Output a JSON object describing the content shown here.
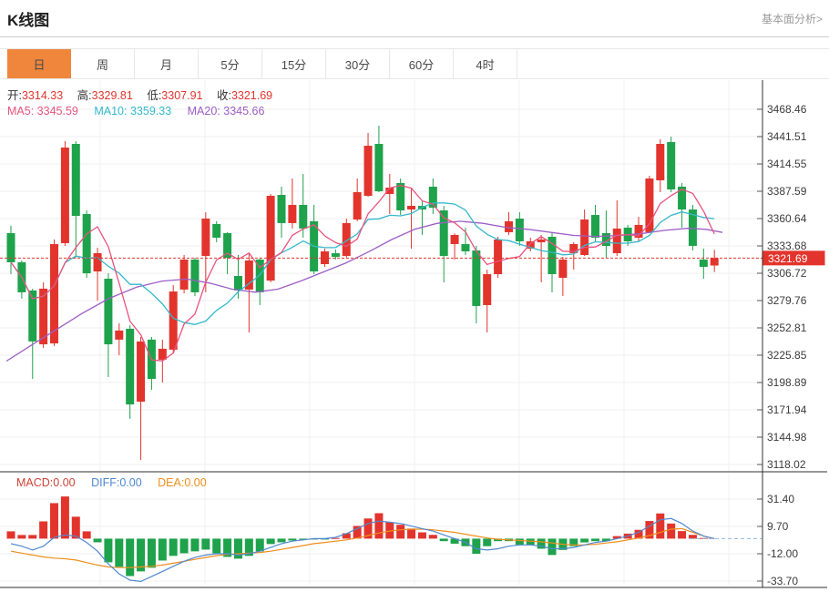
{
  "header": {
    "title": "K线图",
    "link": "基本面分析>"
  },
  "tabs": {
    "items": [
      {
        "label": "日",
        "active": true
      },
      {
        "label": "周",
        "active": false
      },
      {
        "label": "月",
        "active": false
      },
      {
        "label": "5分",
        "active": false
      },
      {
        "label": "15分",
        "active": false
      },
      {
        "label": "30分",
        "active": false
      },
      {
        "label": "60分",
        "active": false
      },
      {
        "label": "4时",
        "active": false
      }
    ]
  },
  "ohlc": {
    "open": {
      "label": "开:",
      "value": "3314.33"
    },
    "high": {
      "label": "高:",
      "value": "3329.81"
    },
    "low": {
      "label": "低:",
      "value": "3307.91"
    },
    "close": {
      "label": "收:",
      "value": "3321.69"
    }
  },
  "ma": {
    "ma5": {
      "label": "MA5:",
      "value": "3345.59"
    },
    "ma10": {
      "label": "MA10:",
      "value": "3359.33"
    },
    "ma20": {
      "label": "MA20:",
      "value": "3345.66"
    }
  },
  "macd_readout": {
    "macd": "MACD:0.00",
    "diff": "DIFF:0.00",
    "dea": "DEA:0.00"
  },
  "price_marker": "3321.69",
  "colors": {
    "up": "#e2342c",
    "down": "#1ea24b",
    "ma5": "#e8537f",
    "ma10": "#35b8cc",
    "ma20": "#9d5ec6",
    "macd_label": "#cf4436",
    "diff": "#5087d0",
    "dea": "#ef8e1c",
    "accent_tab": "#ef863c",
    "axis_text": "#3b3b3b",
    "grid": "#efefef",
    "frame": "#2f2f2f"
  },
  "chart_data": {
    "type": "candlestick",
    "title": "K线图",
    "interval_selected": "日",
    "price_axis_labels": [
      "3468.46",
      "3441.51",
      "3414.55",
      "3387.59",
      "3360.64",
      "3333.68",
      "3306.72",
      "3279.76",
      "3252.81",
      "3225.85",
      "3198.89",
      "3171.94",
      "3144.98",
      "3118.02"
    ],
    "current_price": 3321.69,
    "ohlc_last": {
      "open": 3314.33,
      "high": 3329.81,
      "low": 3307.91,
      "close": 3321.69
    },
    "ma_values": {
      "ma5": 3345.59,
      "ma10": 3359.33,
      "ma20": 3345.66
    },
    "candles": [
      [
        3346.3,
        3353.5,
        3305.8,
        3317.5
      ],
      [
        3317.5,
        3319.3,
        3281.6,
        3287.9
      ],
      [
        3289.7,
        3291.5,
        3202.5,
        3239.4
      ],
      [
        3236.6,
        3297.7,
        3233.0,
        3291.5
      ],
      [
        3237.5,
        3340.0,
        3235.0,
        3335.5
      ],
      [
        3336.4,
        3437.0,
        3333.7,
        3430.7
      ],
      [
        3434.3,
        3437.0,
        3322.0,
        3363.3
      ],
      [
        3365.1,
        3368.7,
        3302.2,
        3306.7
      ],
      [
        3308.5,
        3331.9,
        3279.8,
        3326.5
      ],
      [
        3301.3,
        3306.7,
        3204.3,
        3236.6
      ],
      [
        3241.2,
        3257.3,
        3225.9,
        3250.2
      ],
      [
        3251.9,
        3255.5,
        3163.0,
        3177.3
      ],
      [
        3180.0,
        3243.8,
        3122.5,
        3239.4
      ],
      [
        3241.2,
        3243.8,
        3191.7,
        3202.5
      ],
      [
        3221.4,
        3241.2,
        3198.9,
        3232.2
      ],
      [
        3231.3,
        3295.0,
        3227.7,
        3288.7
      ],
      [
        3290.6,
        3324.7,
        3286.9,
        3320.2
      ],
      [
        3320.2,
        3322.0,
        3284.2,
        3287.9
      ],
      [
        3323.8,
        3366.9,
        3287.9,
        3360.6
      ],
      [
        3355.3,
        3358.0,
        3337.3,
        3341.8
      ],
      [
        3346.3,
        3347.2,
        3305.8,
        3322.0
      ],
      [
        3304.0,
        3324.7,
        3281.6,
        3289.7
      ],
      [
        3290.6,
        3326.5,
        3248.3,
        3319.3
      ],
      [
        3320.2,
        3322.0,
        3275.3,
        3287.9
      ],
      [
        3299.5,
        3384.9,
        3297.7,
        3383.1
      ],
      [
        3384.0,
        3392.1,
        3341.8,
        3356.2
      ],
      [
        3356.2,
        3400.2,
        3350.8,
        3374.1
      ],
      [
        3374.1,
        3404.7,
        3341.8,
        3350.8
      ],
      [
        3358.0,
        3374.1,
        3305.8,
        3308.5
      ],
      [
        3315.7,
        3331.0,
        3313.0,
        3328.3
      ],
      [
        3326.5,
        3330.1,
        3320.2,
        3322.9
      ],
      [
        3323.8,
        3360.6,
        3322.0,
        3356.2
      ],
      [
        3359.7,
        3400.2,
        3358.0,
        3386.7
      ],
      [
        3383.1,
        3445.1,
        3382.2,
        3432.5
      ],
      [
        3434.3,
        3452.3,
        3386.7,
        3387.6
      ],
      [
        3384.9,
        3404.7,
        3365.1,
        3391.2
      ],
      [
        3395.7,
        3400.2,
        3364.2,
        3368.7
      ],
      [
        3369.6,
        3391.2,
        3331.0,
        3373.2
      ],
      [
        3373.2,
        3378.6,
        3344.5,
        3369.6
      ],
      [
        3392.1,
        3400.2,
        3365.1,
        3371.4
      ],
      [
        3368.7,
        3373.2,
        3297.7,
        3323.8
      ],
      [
        3335.5,
        3346.0,
        3320.2,
        3344.5
      ],
      [
        3335.5,
        3351.7,
        3324.7,
        3328.3
      ],
      [
        3329.2,
        3333.7,
        3257.3,
        3274.4
      ],
      [
        3275.3,
        3310.3,
        3248.3,
        3305.8
      ],
      [
        3305.8,
        3342.7,
        3302.2,
        3340.0
      ],
      [
        3347.2,
        3366.9,
        3344.5,
        3358.0
      ],
      [
        3360.6,
        3366.9,
        3333.7,
        3338.2
      ],
      [
        3331.0,
        3341.8,
        3328.3,
        3338.2
      ],
      [
        3337.3,
        3344.5,
        3297.7,
        3340.0
      ],
      [
        3342.7,
        3346.3,
        3287.9,
        3305.8
      ],
      [
        3302.2,
        3322.9,
        3284.2,
        3320.2
      ],
      [
        3326.5,
        3337.3,
        3310.3,
        3335.5
      ],
      [
        3324.7,
        3369.6,
        3323.8,
        3359.7
      ],
      [
        3364.2,
        3374.1,
        3338.2,
        3341.8
      ],
      [
        3346.3,
        3368.7,
        3322.0,
        3333.7
      ],
      [
        3326.5,
        3378.6,
        3323.8,
        3350.8
      ],
      [
        3351.7,
        3354.4,
        3333.7,
        3338.2
      ],
      [
        3341.8,
        3362.4,
        3338.2,
        3354.4
      ],
      [
        3347.2,
        3402.9,
        3346.3,
        3400.2
      ],
      [
        3398.4,
        3438.8,
        3386.7,
        3434.3
      ],
      [
        3436.1,
        3441.5,
        3386.7,
        3389.4
      ],
      [
        3392.1,
        3395.7,
        3351.7,
        3369.6
      ],
      [
        3369.6,
        3374.1,
        3329.2,
        3333.7
      ],
      [
        3320.2,
        3331.0,
        3301.3,
        3313.0
      ],
      [
        3314.33,
        3329.81,
        3307.91,
        3321.69
      ]
    ],
    "ma20_points": [
      [
        7,
        3220
      ],
      [
        35,
        3236
      ],
      [
        60,
        3250
      ],
      [
        90,
        3267
      ],
      [
        120,
        3282
      ],
      [
        150,
        3293
      ],
      [
        178,
        3299
      ],
      [
        205,
        3301
      ],
      [
        230,
        3297
      ],
      [
        255,
        3291
      ],
      [
        280,
        3288
      ],
      [
        305,
        3291
      ],
      [
        330,
        3299
      ],
      [
        355,
        3308
      ],
      [
        380,
        3317
      ],
      [
        405,
        3328
      ],
      [
        430,
        3340
      ],
      [
        455,
        3350
      ],
      [
        480,
        3356
      ],
      [
        505,
        3358
      ],
      [
        530,
        3356
      ],
      [
        555,
        3352
      ],
      [
        580,
        3350
      ],
      [
        605,
        3347
      ],
      [
        630,
        3344
      ],
      [
        655,
        3343
      ],
      [
        680,
        3344
      ],
      [
        705,
        3346
      ],
      [
        730,
        3349
      ],
      [
        755,
        3351
      ],
      [
        775,
        3350
      ],
      [
        793,
        3347
      ]
    ],
    "macd": {
      "axis_labels": [
        "31.40",
        "9.70",
        "-12.00",
        "-33.70"
      ],
      "last_values": {
        "macd": 0.0,
        "diff": 0.0,
        "dea": 0.0
      },
      "bars": [
        5.8,
        2.9,
        2.9,
        13.7,
        28.2,
        33.5,
        17.4,
        5.8,
        -2.9,
        -18.8,
        -22.4,
        -29.7,
        -26.0,
        -23.1,
        -17.4,
        -13.7,
        -11.6,
        -10.1,
        -8.7,
        -11.6,
        -14.5,
        -15.9,
        -13.7,
        -10.1,
        -4.3,
        -2.9,
        -1.5,
        -0.8,
        -0.5,
        -0.5,
        0.5,
        4.3,
        10.1,
        16.0,
        20.2,
        13.0,
        11.0,
        8.0,
        5.0,
        3.0,
        -2.0,
        -4.0,
        -6.0,
        -12.0,
        -6.0,
        -2.0,
        -2.0,
        -5.0,
        -5.0,
        -8.0,
        -13.0,
        -9.0,
        -6.0,
        -3.0,
        -2.0,
        -2.0,
        2.0,
        4.0,
        7.0,
        14.0,
        20.0,
        12.0,
        6.0,
        3.0,
        0.5,
        0.0
      ],
      "diff": [
        -4,
        -6,
        -9,
        -6,
        1,
        3,
        2,
        -3,
        -10,
        -20,
        -28,
        -33,
        -34,
        -30,
        -26,
        -22,
        -18,
        -15,
        -13,
        -12,
        -12,
        -13,
        -12,
        -10,
        -7,
        -4,
        -2,
        -1,
        0,
        0,
        1,
        4,
        8,
        12,
        14,
        13,
        12,
        10,
        8,
        6,
        3,
        0,
        -3,
        -8,
        -9,
        -8,
        -6,
        -5,
        -5,
        -6,
        -8,
        -8,
        -7,
        -5,
        -3,
        -2,
        0,
        2,
        5,
        10,
        15,
        16,
        12,
        6,
        2,
        0
      ],
      "dea": [
        -10,
        -11.5,
        -13,
        -14.5,
        -15.5,
        -16,
        -17,
        -19,
        -21,
        -22.5,
        -23,
        -23,
        -22.5,
        -22,
        -21,
        -19.5,
        -18,
        -16.5,
        -15,
        -13.5,
        -12.5,
        -12,
        -11.5,
        -11,
        -10,
        -8.5,
        -7,
        -5.5,
        -4,
        -3,
        -2,
        -1,
        0.5,
        2.5,
        4.5,
        6,
        7,
        7.5,
        7.5,
        7,
        6,
        5,
        3.5,
        2,
        0.5,
        -0.5,
        -1,
        -1.5,
        -2,
        -2.5,
        -3.5,
        -4.5,
        -5,
        -5,
        -4.5,
        -3.5,
        -2.5,
        -1,
        0.5,
        2.5,
        5,
        7.5,
        8,
        5,
        2,
        0
      ]
    }
  }
}
